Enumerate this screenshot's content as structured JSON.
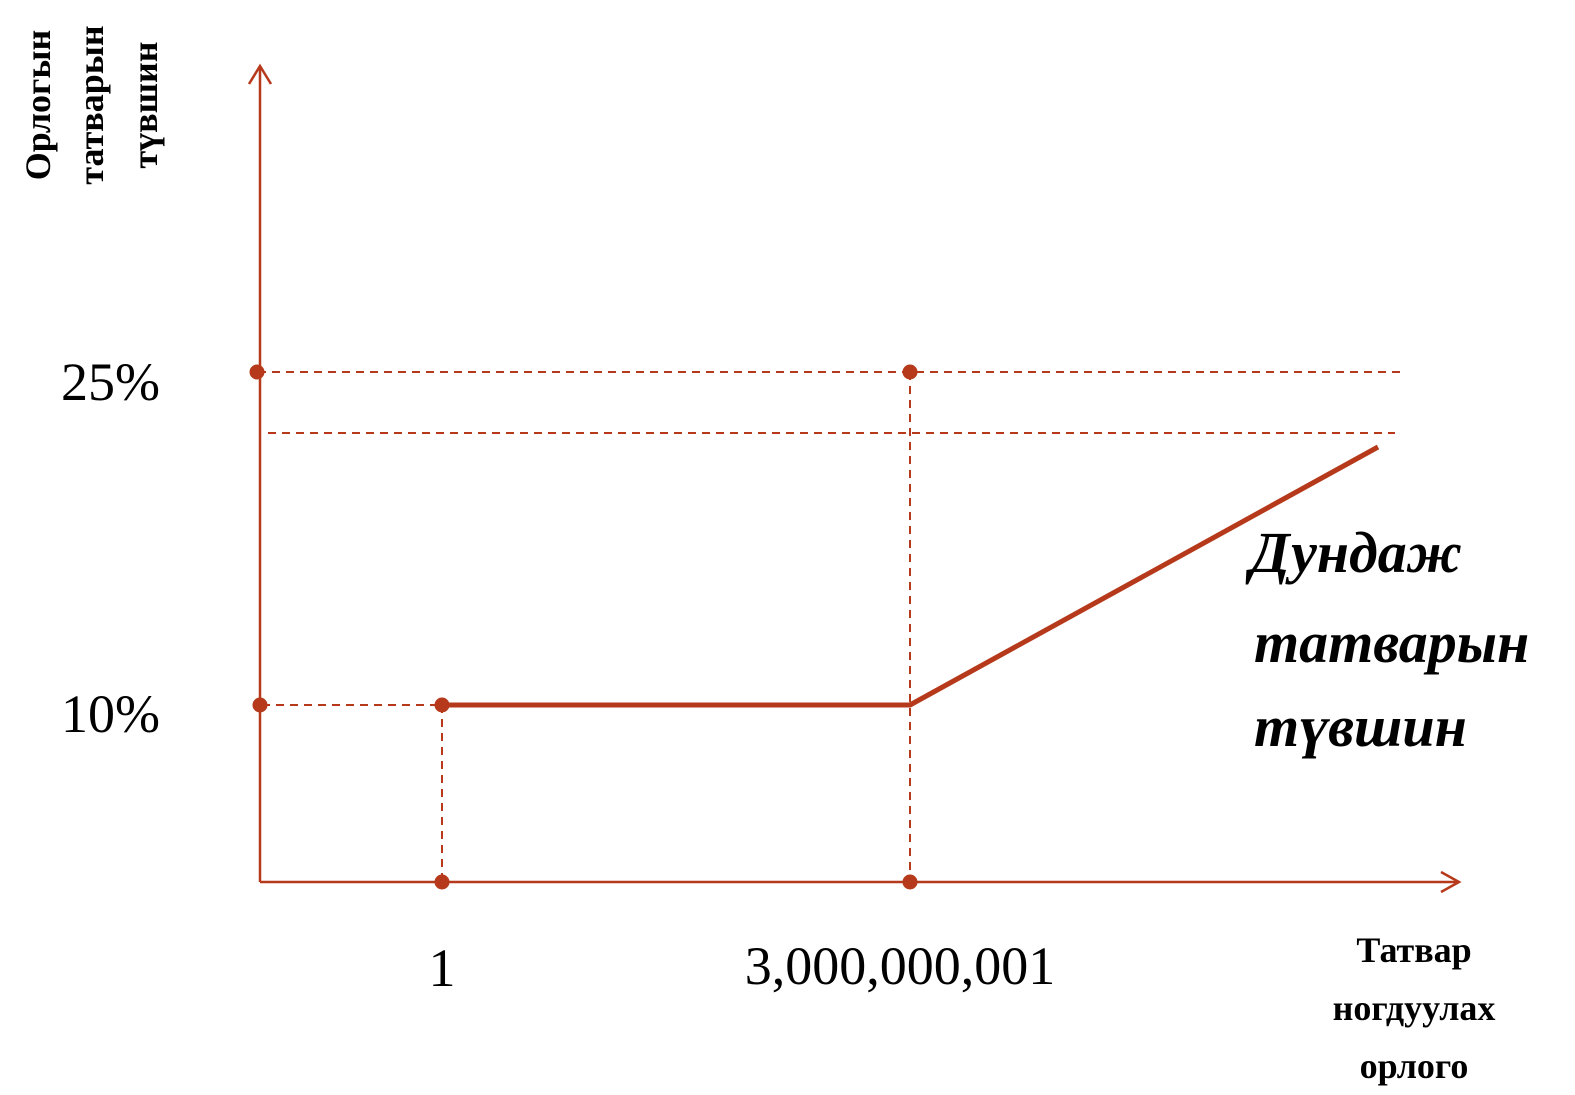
{
  "chart_data": {
    "type": "line",
    "ylabel": [
      "Орлогын",
      "татварын",
      "түвшин"
    ],
    "xlabel": [
      "Татвар",
      "ногдуулах",
      "орлого"
    ],
    "x_tick_labels": [
      "1",
      "3,000,000,001"
    ],
    "y_tick_labels": [
      "25%",
      "10%"
    ],
    "series": [
      {
        "name": [
          "Дундаж",
          "татварын",
          "түвшин"
        ],
        "points": [
          {
            "x": "1",
            "y": 10
          },
          {
            "x": "3,000,000,001",
            "y": 10
          },
          {
            "x": "→ ∞",
            "y": 23
          }
        ]
      }
    ],
    "reference_lines": {
      "horizontal": [
        25,
        23
      ],
      "vertical": [
        "1",
        "3,000,000,001"
      ]
    },
    "colors": {
      "line": "#B5391A",
      "text": "#000000"
    }
  }
}
